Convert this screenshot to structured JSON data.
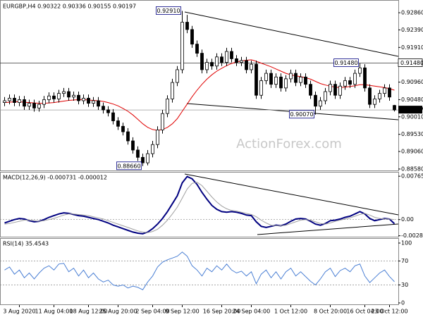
{
  "chart_data": [
    {
      "type": "candlestick",
      "title": "EURGBP,H4 0.90322 0.90336 0.90155 0.90197",
      "watermark": "ActionForex.com",
      "open": [
        0.904,
        0.9045,
        0.9052,
        0.904,
        0.9048,
        0.903,
        0.9038,
        0.9025,
        0.9035,
        0.9048,
        0.9058,
        0.905,
        0.9065,
        0.907,
        0.9055,
        0.906,
        0.9045,
        0.9052,
        0.9038,
        0.9045,
        0.903,
        0.902,
        0.9012,
        0.899,
        0.8975,
        0.896,
        0.8935,
        0.891,
        0.889,
        0.8875,
        0.89,
        0.8925,
        0.8965,
        0.901,
        0.905,
        0.9095,
        0.913,
        0.926,
        0.924,
        0.92,
        0.9175,
        0.913,
        0.915,
        0.914,
        0.9165,
        0.915,
        0.918,
        0.916,
        0.915,
        0.9155,
        0.913,
        0.9145,
        0.906,
        0.91,
        0.912,
        0.909,
        0.911,
        0.908,
        0.9105,
        0.912,
        0.9095,
        0.911,
        0.909,
        0.906,
        0.903,
        0.9045,
        0.907,
        0.909,
        0.906,
        0.9085,
        0.91,
        0.909,
        0.912,
        0.9135,
        0.908,
        0.9035,
        0.905,
        0.9065,
        0.908,
        0.90322
      ],
      "high": [
        0.9055,
        0.9062,
        0.9062,
        0.9058,
        0.9058,
        0.9048,
        0.9048,
        0.9045,
        0.9058,
        0.9068,
        0.9068,
        0.9075,
        0.908,
        0.908,
        0.907,
        0.907,
        0.9062,
        0.9062,
        0.9055,
        0.9055,
        0.904,
        0.903,
        0.9022,
        0.9,
        0.8985,
        0.897,
        0.8945,
        0.892,
        0.89,
        0.891,
        0.8935,
        0.8975,
        0.902,
        0.906,
        0.9105,
        0.914,
        0.9291,
        0.928,
        0.925,
        0.921,
        0.9185,
        0.916,
        0.916,
        0.9175,
        0.9175,
        0.919,
        0.919,
        0.917,
        0.9165,
        0.9165,
        0.9155,
        0.9155,
        0.911,
        0.913,
        0.913,
        0.912,
        0.912,
        0.9115,
        0.913,
        0.913,
        0.912,
        0.912,
        0.91,
        0.907,
        0.9055,
        0.908,
        0.91,
        0.91,
        0.9095,
        0.911,
        0.911,
        0.913,
        0.9148,
        0.9145,
        0.909,
        0.906,
        0.9075,
        0.909,
        0.909,
        0.90336
      ],
      "low": [
        0.903,
        0.9035,
        0.903,
        0.903,
        0.902,
        0.902,
        0.9015,
        0.9015,
        0.9025,
        0.9038,
        0.904,
        0.904,
        0.9055,
        0.9045,
        0.9045,
        0.9035,
        0.9035,
        0.9028,
        0.9028,
        0.902,
        0.901,
        0.9002,
        0.898,
        0.8965,
        0.895,
        0.8925,
        0.89,
        0.888,
        0.8866,
        0.8868,
        0.889,
        0.8915,
        0.8955,
        0.9,
        0.904,
        0.9085,
        0.912,
        0.923,
        0.919,
        0.9165,
        0.912,
        0.912,
        0.913,
        0.913,
        0.914,
        0.914,
        0.915,
        0.914,
        0.914,
        0.912,
        0.912,
        0.905,
        0.905,
        0.909,
        0.908,
        0.908,
        0.907,
        0.907,
        0.9095,
        0.9085,
        0.9085,
        0.908,
        0.905,
        0.9007,
        0.902,
        0.9035,
        0.906,
        0.905,
        0.905,
        0.9075,
        0.908,
        0.908,
        0.911,
        0.907,
        0.9025,
        0.9025,
        0.904,
        0.9055,
        0.9045,
        0.90155
      ],
      "close": [
        0.9045,
        0.9052,
        0.904,
        0.9048,
        0.903,
        0.9038,
        0.9025,
        0.9035,
        0.9048,
        0.9058,
        0.905,
        0.9065,
        0.907,
        0.9055,
        0.906,
        0.9045,
        0.9052,
        0.9038,
        0.9045,
        0.903,
        0.902,
        0.9012,
        0.899,
        0.8975,
        0.896,
        0.8935,
        0.891,
        0.889,
        0.8875,
        0.89,
        0.8925,
        0.8965,
        0.901,
        0.905,
        0.9095,
        0.913,
        0.926,
        0.924,
        0.92,
        0.9175,
        0.913,
        0.915,
        0.914,
        0.9165,
        0.915,
        0.918,
        0.916,
        0.915,
        0.9155,
        0.913,
        0.9145,
        0.906,
        0.91,
        0.912,
        0.909,
        0.911,
        0.908,
        0.9105,
        0.912,
        0.9095,
        0.911,
        0.909,
        0.906,
        0.903,
        0.9045,
        0.907,
        0.909,
        0.906,
        0.9085,
        0.91,
        0.909,
        0.912,
        0.9135,
        0.908,
        0.9035,
        0.905,
        0.9065,
        0.908,
        0.9055,
        0.90197
      ],
      "high_labels": [
        null,
        null,
        null,
        null,
        null,
        null,
        null,
        null,
        null,
        null,
        null,
        null,
        null,
        null,
        null,
        null,
        null,
        null,
        null,
        null,
        null,
        null,
        null,
        null,
        null,
        null,
        null,
        null,
        null,
        null,
        null,
        null,
        null,
        null,
        null,
        null,
        "0.92910",
        null,
        null,
        null,
        null,
        null,
        null,
        null,
        null,
        null,
        null,
        null,
        null,
        null,
        null,
        null,
        null,
        null,
        null,
        null,
        null,
        null,
        null,
        null,
        null,
        null,
        null,
        null,
        null,
        null,
        null,
        null,
        null,
        null,
        null,
        null,
        "0.91480",
        null,
        null,
        null,
        null,
        null,
        null,
        null
      ],
      "low_labels": [
        null,
        null,
        null,
        null,
        null,
        null,
        null,
        null,
        null,
        null,
        null,
        null,
        null,
        null,
        null,
        null,
        null,
        null,
        null,
        null,
        null,
        null,
        null,
        null,
        null,
        null,
        null,
        null,
        "0.88660",
        null,
        null,
        null,
        null,
        null,
        null,
        null,
        null,
        null,
        null,
        null,
        null,
        null,
        null,
        null,
        null,
        null,
        null,
        null,
        null,
        null,
        null,
        null,
        null,
        null,
        null,
        null,
        null,
        null,
        null,
        null,
        null,
        null,
        null,
        "0.90070",
        null,
        null,
        null,
        null,
        null,
        null,
        null,
        null,
        null,
        null,
        null,
        null,
        null,
        null,
        null,
        null
      ],
      "candle_color": "#000000",
      "ma": {
        "color": "#e00000",
        "values": [
          0.904,
          0.9041,
          0.9042,
          0.9042,
          0.9041,
          0.904,
          0.9039,
          0.9038,
          0.9038,
          0.9039,
          0.904,
          0.9042,
          0.9044,
          0.9046,
          0.9047,
          0.9048,
          0.9048,
          0.9047,
          0.9046,
          0.9045,
          0.9043,
          0.904,
          0.9036,
          0.9031,
          0.9024,
          0.9016,
          0.9006,
          0.8994,
          0.8982,
          0.8972,
          0.8966,
          0.8964,
          0.8966,
          0.8972,
          0.8982,
          0.8996,
          0.9016,
          0.9036,
          0.9056,
          0.9074,
          0.909,
          0.9104,
          0.9116,
          0.9126,
          0.9134,
          0.9141,
          0.9147,
          0.9151,
          0.9154,
          0.9156,
          0.9157,
          0.9153,
          0.9148,
          0.9143,
          0.9138,
          0.9132,
          0.9126,
          0.912,
          0.9116,
          0.9113,
          0.9111,
          0.9108,
          0.9104,
          0.9098,
          0.9092,
          0.9088,
          0.9085,
          0.9082,
          0.9081,
          0.9082,
          0.9084,
          0.9086,
          0.9089,
          0.9089,
          0.9087,
          0.9085,
          0.9083,
          0.9081,
          0.9078,
          0.9074
        ]
      },
      "ylim": [
        0.8854,
        0.9317
      ],
      "yticks": [
        {
          "value": 0.9286,
          "label": "0.92860"
        },
        {
          "value": 0.9239,
          "label": "0.92390"
        },
        {
          "value": 0.9191,
          "label": "0.91910"
        },
        {
          "value": 0.9096,
          "label": "0.90960"
        },
        {
          "value": 0.9048,
          "label": "0.90480"
        },
        {
          "value": 0.9001,
          "label": "0.90010"
        },
        {
          "value": 0.8953,
          "label": "0.89530"
        },
        {
          "value": 0.8906,
          "label": "0.89060"
        },
        {
          "value": 0.8858,
          "label": "0.88580"
        }
      ],
      "level": {
        "value": 0.9148,
        "label": "0.91480"
      },
      "last": {
        "value": 0.90197,
        "label": "0.90197"
      }
    },
    {
      "type": "line",
      "title": "MACD(12,26,9) -0.000731 -0.000012",
      "series": [
        {
          "color": "#000080",
          "values": [
            -0.0006,
            -0.0003,
            0,
            0.0002,
            0.0001,
            -0.0002,
            -0.0004,
            -0.0003,
            0,
            0.0004,
            0.0007,
            0.001,
            0.0012,
            0.0011,
            0.0009,
            0.0007,
            0.0006,
            0.0004,
            0.0002,
            0,
            -0.0003,
            -0.0006,
            -0.001,
            -0.0013,
            -0.0016,
            -0.0019,
            -0.0022,
            -0.0024,
            -0.0025,
            -0.0022,
            -0.0016,
            -0.0008,
            0.0002,
            0.0014,
            0.0028,
            0.0042,
            0.0065,
            0.0076,
            0.0072,
            0.0062,
            0.0048,
            0.0036,
            0.0025,
            0.0018,
            0.0014,
            0.0013,
            0.0014,
            0.0013,
            0.0011,
            0.0008,
            0.0007,
            -0.0004,
            -0.0012,
            -0.0014,
            -0.0012,
            -0.001,
            -0.0011,
            -0.0008,
            -0.0003,
            0.0001,
            0.0002,
            0.0001,
            -0.0003,
            -0.0008,
            -0.001,
            -0.0007,
            -0.0002,
            -0.0001,
            0.0001,
            0.0004,
            0.0006,
            0.001,
            0.0014,
            0.001,
            0.0002,
            -0.0002,
            0,
            0.0002,
            0.0001,
            -0.000731
          ]
        },
        {
          "color": "#a0a0a0",
          "values": [
            -0.0008,
            -0.0007,
            -0.0005,
            -0.0003,
            -0.0001,
            -0.0001,
            -0.0002,
            -0.0003,
            -0.0002,
            0,
            0.0002,
            0.0005,
            0.0008,
            0.001,
            0.001,
            0.0009,
            0.0008,
            0.0007,
            0.0005,
            0.0003,
            0.0001,
            -0.0002,
            -0.0005,
            -0.0008,
            -0.0011,
            -0.0014,
            -0.0017,
            -0.002,
            -0.0022,
            -0.0023,
            -0.0021,
            -0.0017,
            -0.001,
            -0.0001,
            0.001,
            0.0022,
            0.0038,
            0.0054,
            0.0064,
            0.0066,
            0.006,
            0.005,
            0.004,
            0.0031,
            0.0024,
            0.0019,
            0.0016,
            0.0015,
            0.0013,
            0.0011,
            0.0009,
            0.0005,
            -0.0001,
            -0.0006,
            -0.001,
            -0.0011,
            -0.0011,
            -0.001,
            -0.0007,
            -0.0004,
            -0.0001,
            0,
            -0.0001,
            -0.0004,
            -0.0007,
            -0.0008,
            -0.0006,
            -0.0003,
            -0.0001,
            0.0001,
            0.0003,
            0.0006,
            0.0009,
            0.0011,
            0.0008,
            0.0004,
            0.0002,
            0.0001,
            0.0001,
            -1.2e-05
          ]
        }
      ],
      "ylim": [
        -0.0029,
        0.0083
      ],
      "yticks": [
        {
          "value": 0.007659,
          "label": "0.007659"
        },
        {
          "value": 0,
          "label": "0.00"
        },
        -0.002855
      ],
      "levels": [
        0
      ]
    },
    {
      "type": "line",
      "title": "RSI(14) 35.4543",
      "series": [
        {
          "color": "#4a7fd4",
          "values": [
            55,
            60,
            48,
            55,
            42,
            50,
            40,
            50,
            58,
            62,
            55,
            65,
            66,
            52,
            58,
            45,
            55,
            42,
            50,
            40,
            35,
            38,
            30,
            28,
            30,
            25,
            28,
            26,
            22,
            35,
            45,
            60,
            68,
            72,
            75,
            78,
            85,
            78,
            62,
            55,
            45,
            58,
            52,
            62,
            55,
            65,
            55,
            50,
            53,
            45,
            52,
            32,
            48,
            55,
            42,
            52,
            40,
            52,
            58,
            45,
            52,
            44,
            36,
            30,
            40,
            52,
            58,
            44,
            54,
            58,
            52,
            62,
            65,
            45,
            34,
            42,
            50,
            55,
            44,
            35.4543
          ]
        }
      ],
      "ylim": [
        0,
        100
      ],
      "yticks": [
        100,
        70,
        30,
        0
      ],
      "levels": [
        70,
        30
      ],
      "categories": [
        null,
        null,
        null,
        "3 Aug 2020",
        null,
        null,
        null,
        null,
        null,
        null,
        "11 Aug 04:00",
        null,
        null,
        null,
        null,
        null,
        null,
        "18 Aug 12:00",
        null,
        null,
        null,
        null,
        null,
        "25 Aug 20:00",
        null,
        null,
        null,
        null,
        null,
        null,
        "2 Sep 04:00",
        null,
        null,
        null,
        null,
        null,
        "9 Sep 12:00",
        null,
        null,
        null,
        null,
        null,
        null,
        null,
        "16 Sep 20:00",
        null,
        null,
        null,
        null,
        null,
        "24 Sep 04:00",
        null,
        null,
        null,
        null,
        null,
        null,
        null,
        "1 Oct 12:00",
        null,
        null,
        null,
        null,
        null,
        null,
        null,
        "8 Oct 20:00",
        null,
        null,
        null,
        null,
        null,
        null,
        "16 Oct 04:00",
        null,
        null,
        null,
        null,
        "23 Oct 12:00",
        null
      ]
    }
  ]
}
